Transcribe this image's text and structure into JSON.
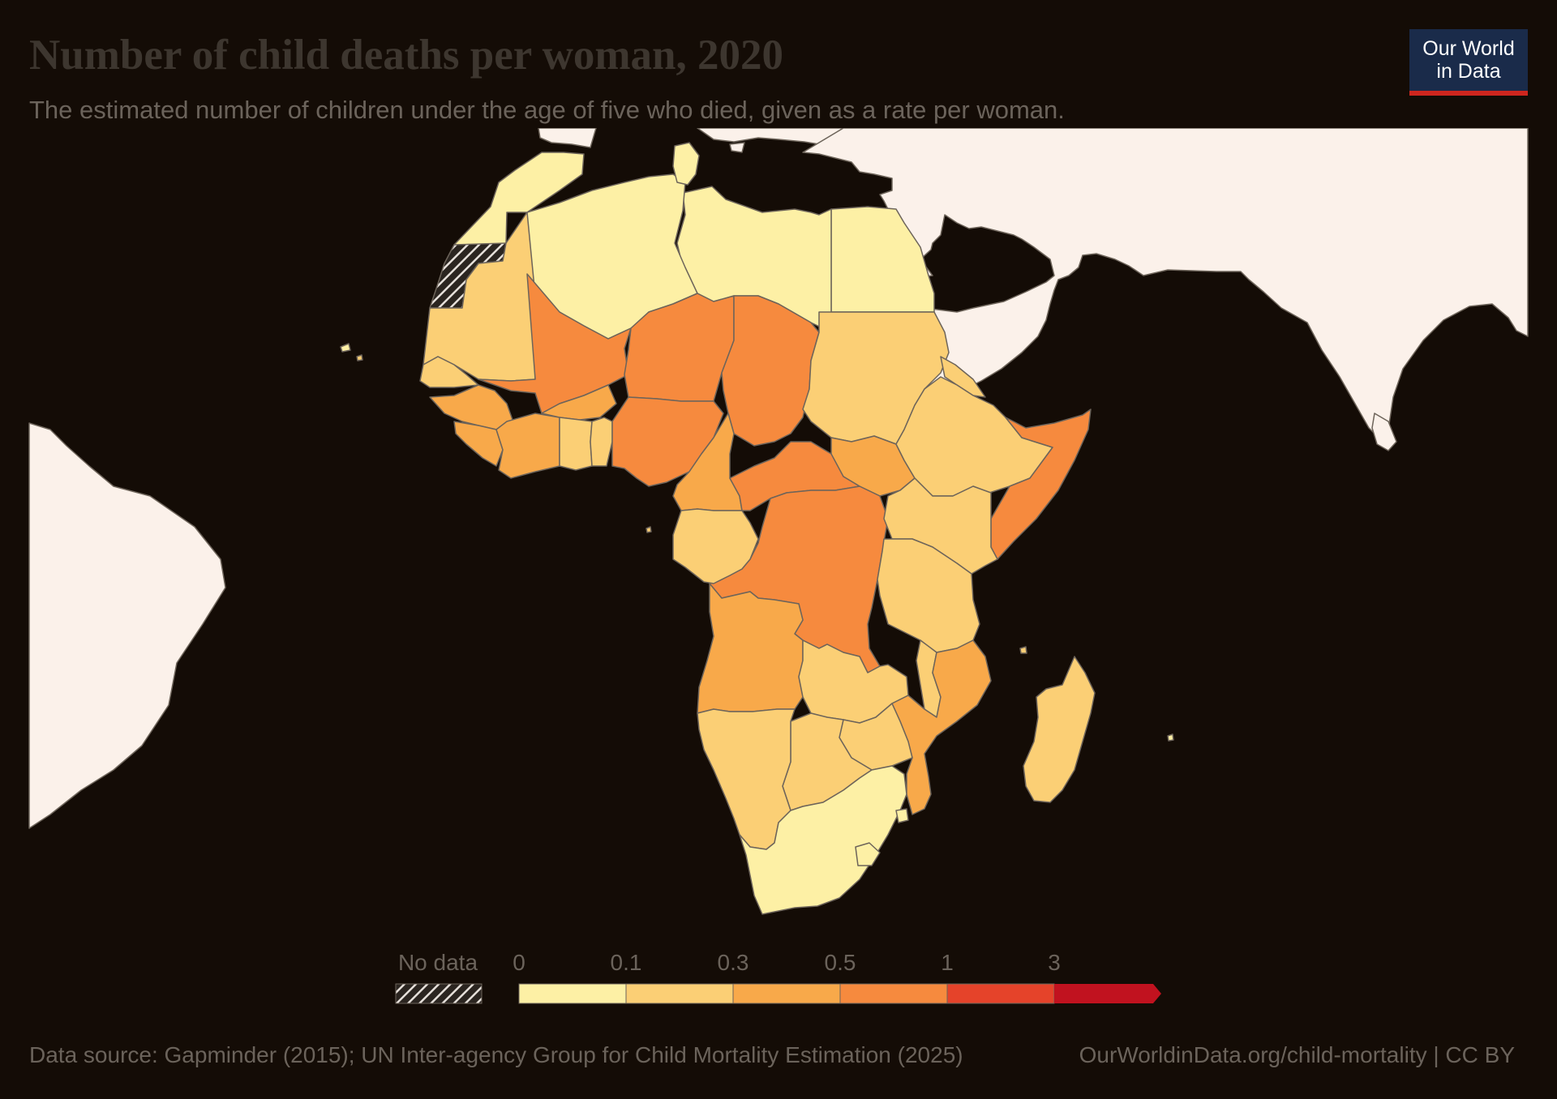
{
  "header": {
    "title": "Number of child deaths per woman, 2020",
    "subtitle": "The estimated number of children under the age of five who died, given as a rate per woman."
  },
  "logo": {
    "line1": "Our World",
    "line2": "in Data"
  },
  "legend": {
    "no_data_label": "No data",
    "ticks": [
      "0",
      "0.1",
      "0.3",
      "0.5",
      "1",
      "3"
    ],
    "colors": [
      "#fdf0a5",
      "#fbcf75",
      "#f8a94a",
      "#f68a3e",
      "#e5432a",
      "#c1121f"
    ]
  },
  "footer": {
    "source": "Data source: Gapminder (2015); UN Inter-agency Group for Child Mortality Estimation (2025)",
    "url": "OurWorldinData.org/child-mortality | CC BY"
  },
  "colors": {
    "background": "#140c06",
    "land_other": "#fbf1ea",
    "border": "#6d645a"
  }
}
